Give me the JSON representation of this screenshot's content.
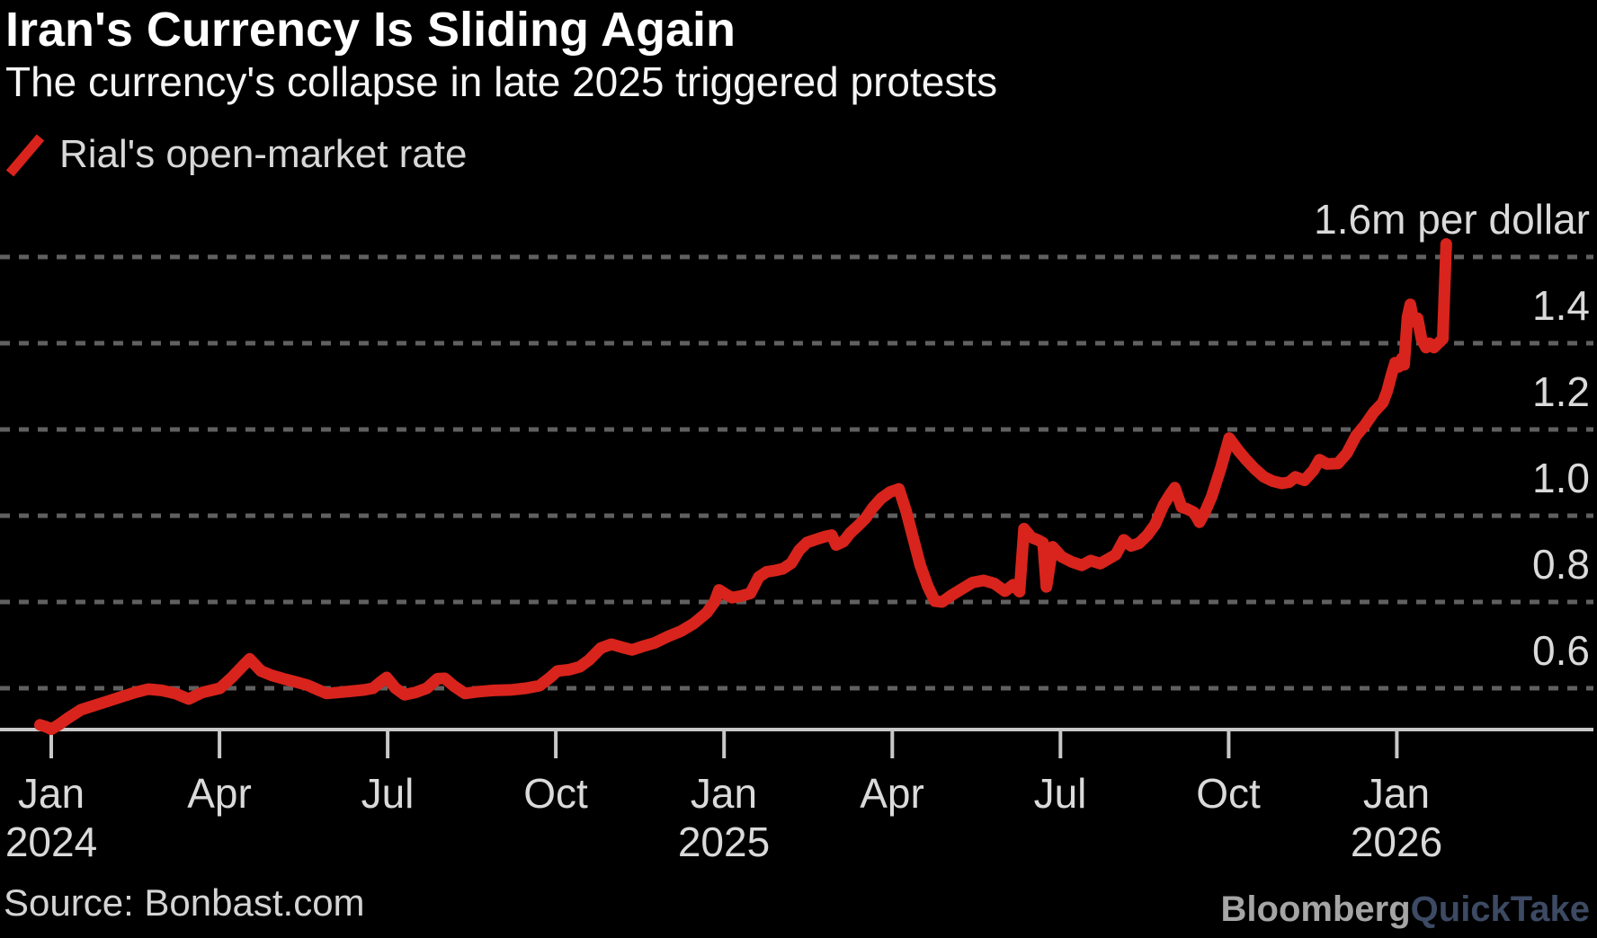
{
  "header": {
    "title": "Iran's Currency Is Sliding Again",
    "subtitle": "The currency's collapse in late 2025 triggered protests"
  },
  "legend": {
    "label": "Rial's open-market rate"
  },
  "footer": {
    "source": "Source: Bonbast.com",
    "brand": {
      "bloomberg": "Bloomberg",
      "quicktake": "QuickTake"
    }
  },
  "colors": {
    "background": "#000000",
    "line_red": "#d8241c",
    "grid": "#606060",
    "axis": "#c8c8c8",
    "text_primary": "#ffffff",
    "text_axis": "#dadada",
    "brand_gray": "#a5a5a5",
    "brand_blue": "#3c4a63"
  },
  "chart_data": {
    "type": "line",
    "title": "Iran's Currency Is Sliding Again",
    "subtitle": "The currency's collapse in late 2025 triggered protests",
    "x_unit": "months since Jan 2024",
    "y_unit": "million rials per U.S. dollar",
    "ylim": [
      0.5,
      1.66
    ],
    "xlim_months": [
      -0.3,
      25.3
    ],
    "grid": "horizontal dashed gridlines, black background, labels on right",
    "legend_position": "top-left",
    "y_axis": {
      "top_label": "1.6m per dollar",
      "ticks": [
        {
          "v": 1.6,
          "label": "1.6m per dollar"
        },
        {
          "v": 1.4,
          "label": "1.4"
        },
        {
          "v": 1.2,
          "label": "1.2"
        },
        {
          "v": 1.0,
          "label": "1.0"
        },
        {
          "v": 0.8,
          "label": "0.8"
        },
        {
          "v": 0.6,
          "label": "0.6"
        }
      ]
    },
    "x_ticks": [
      {
        "m": 0,
        "month": "Jan",
        "year": "2024"
      },
      {
        "m": 3,
        "month": "Apr"
      },
      {
        "m": 6,
        "month": "Jul"
      },
      {
        "m": 9,
        "month": "Oct"
      },
      {
        "m": 12,
        "month": "Jan",
        "year": "2025"
      },
      {
        "m": 15,
        "month": "Apr"
      },
      {
        "m": 18,
        "month": "Jul"
      },
      {
        "m": 21,
        "month": "Oct"
      },
      {
        "m": 24,
        "month": "Jan",
        "year": "2026"
      }
    ],
    "series": [
      {
        "name": "Rial's open-market rate",
        "color": "#d8241c",
        "points": [
          [
            -0.2,
            0.515
          ],
          [
            -0.08,
            0.51
          ],
          [
            0,
            0.505
          ],
          [
            0.13,
            0.515
          ],
          [
            0.29,
            0.53
          ],
          [
            0.53,
            0.55
          ],
          [
            0.77,
            0.56
          ],
          [
            1.01,
            0.57
          ],
          [
            1.25,
            0.58
          ],
          [
            1.49,
            0.59
          ],
          [
            1.73,
            0.598
          ],
          [
            1.97,
            0.595
          ],
          [
            2.21,
            0.588
          ],
          [
            2.45,
            0.575
          ],
          [
            2.69,
            0.59
          ],
          [
            3.01,
            0.6
          ],
          [
            3.22,
            0.625
          ],
          [
            3.42,
            0.652
          ],
          [
            3.54,
            0.668
          ],
          [
            3.74,
            0.64
          ],
          [
            3.93,
            0.63
          ],
          [
            4.14,
            0.622
          ],
          [
            4.38,
            0.614
          ],
          [
            4.57,
            0.607
          ],
          [
            4.73,
            0.598
          ],
          [
            4.91,
            0.588
          ],
          [
            5.1,
            0.59
          ],
          [
            5.34,
            0.593
          ],
          [
            5.58,
            0.596
          ],
          [
            5.74,
            0.6
          ],
          [
            5.88,
            0.615
          ],
          [
            5.98,
            0.625
          ],
          [
            6.14,
            0.6
          ],
          [
            6.3,
            0.585
          ],
          [
            6.49,
            0.59
          ],
          [
            6.7,
            0.6
          ],
          [
            6.89,
            0.622
          ],
          [
            7.02,
            0.623
          ],
          [
            7.18,
            0.605
          ],
          [
            7.38,
            0.588
          ],
          [
            7.62,
            0.592
          ],
          [
            7.9,
            0.595
          ],
          [
            8.19,
            0.596
          ],
          [
            8.47,
            0.6
          ],
          [
            8.71,
            0.606
          ],
          [
            8.9,
            0.625
          ],
          [
            9.03,
            0.64
          ],
          [
            9.24,
            0.643
          ],
          [
            9.43,
            0.65
          ],
          [
            9.59,
            0.665
          ],
          [
            9.8,
            0.693
          ],
          [
            9.99,
            0.702
          ],
          [
            10.18,
            0.695
          ],
          [
            10.36,
            0.689
          ],
          [
            10.55,
            0.697
          ],
          [
            10.76,
            0.705
          ],
          [
            11,
            0.72
          ],
          [
            11.24,
            0.733
          ],
          [
            11.46,
            0.75
          ],
          [
            11.69,
            0.775
          ],
          [
            11.83,
            0.8
          ],
          [
            11.91,
            0.828
          ],
          [
            12.03,
            0.818
          ],
          [
            12.14,
            0.81
          ],
          [
            12.31,
            0.814
          ],
          [
            12.47,
            0.82
          ],
          [
            12.62,
            0.858
          ],
          [
            12.76,
            0.87
          ],
          [
            12.91,
            0.873
          ],
          [
            13.05,
            0.877
          ],
          [
            13.2,
            0.89
          ],
          [
            13.34,
            0.92
          ],
          [
            13.48,
            0.938
          ],
          [
            13.64,
            0.945
          ],
          [
            13.81,
            0.952
          ],
          [
            13.92,
            0.955
          ],
          [
            14,
            0.932
          ],
          [
            14.13,
            0.94
          ],
          [
            14.25,
            0.96
          ],
          [
            14.4,
            0.978
          ],
          [
            14.53,
            0.995
          ],
          [
            14.65,
            1.018
          ],
          [
            14.8,
            1.04
          ],
          [
            14.96,
            1.055
          ],
          [
            15.12,
            1.062
          ],
          [
            15.25,
            1.01
          ],
          [
            15.38,
            0.945
          ],
          [
            15.5,
            0.885
          ],
          [
            15.63,
            0.838
          ],
          [
            15.76,
            0.802
          ],
          [
            15.89,
            0.8
          ],
          [
            16.05,
            0.815
          ],
          [
            16.24,
            0.83
          ],
          [
            16.43,
            0.845
          ],
          [
            16.63,
            0.85
          ],
          [
            16.82,
            0.843
          ],
          [
            17.01,
            0.825
          ],
          [
            17.16,
            0.84
          ],
          [
            17.27,
            0.824
          ],
          [
            17.35,
            0.97
          ],
          [
            17.48,
            0.95
          ],
          [
            17.61,
            0.943
          ],
          [
            17.69,
            0.937
          ],
          [
            17.75,
            0.835
          ],
          [
            17.86,
            0.928
          ],
          [
            18.02,
            0.905
          ],
          [
            18.2,
            0.893
          ],
          [
            18.38,
            0.885
          ],
          [
            18.54,
            0.896
          ],
          [
            18.71,
            0.889
          ],
          [
            18.99,
            0.91
          ],
          [
            19.13,
            0.944
          ],
          [
            19.26,
            0.93
          ],
          [
            19.4,
            0.936
          ],
          [
            19.55,
            0.955
          ],
          [
            19.69,
            0.98
          ],
          [
            19.84,
            1.025
          ],
          [
            19.96,
            1.05
          ],
          [
            20.04,
            1.065
          ],
          [
            20.16,
            1.02
          ],
          [
            20.27,
            1.015
          ],
          [
            20.38,
            1.008
          ],
          [
            20.48,
            0.985
          ],
          [
            20.59,
            1.012
          ],
          [
            20.7,
            1.045
          ],
          [
            20.86,
            1.11
          ],
          [
            21.01,
            1.18
          ],
          [
            21.18,
            1.15
          ],
          [
            21.31,
            1.13
          ],
          [
            21.47,
            1.108
          ],
          [
            21.63,
            1.09
          ],
          [
            21.79,
            1.08
          ],
          [
            21.95,
            1.075
          ],
          [
            22.08,
            1.078
          ],
          [
            22.19,
            1.09
          ],
          [
            22.35,
            1.082
          ],
          [
            22.51,
            1.105
          ],
          [
            22.62,
            1.13
          ],
          [
            22.75,
            1.12
          ],
          [
            22.95,
            1.121
          ],
          [
            23.11,
            1.145
          ],
          [
            23.27,
            1.185
          ],
          [
            23.43,
            1.21
          ],
          [
            23.59,
            1.24
          ],
          [
            23.75,
            1.262
          ],
          [
            23.83,
            1.29
          ],
          [
            23.9,
            1.325
          ],
          [
            23.97,
            1.355
          ],
          [
            24.03,
            1.345
          ],
          [
            24.09,
            1.365
          ],
          [
            24.13,
            1.35
          ],
          [
            24.19,
            1.46
          ],
          [
            24.24,
            1.49
          ],
          [
            24.3,
            1.45
          ],
          [
            24.37,
            1.458
          ],
          [
            24.44,
            1.41
          ],
          [
            24.52,
            1.39
          ],
          [
            24.58,
            1.4
          ],
          [
            24.66,
            1.39
          ],
          [
            24.74,
            1.4
          ],
          [
            24.82,
            1.41
          ],
          [
            24.88,
            1.63
          ]
        ]
      }
    ]
  }
}
